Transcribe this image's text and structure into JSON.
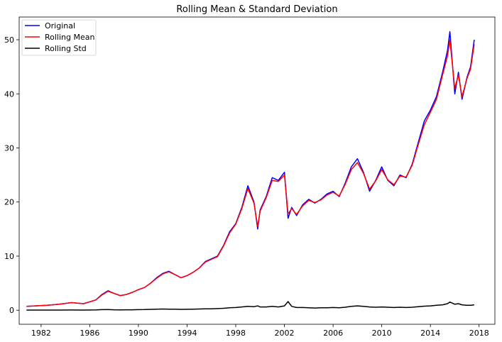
{
  "chart_data": {
    "type": "line",
    "title": "Rolling Mean & Standard Deviation",
    "xlabel": "",
    "ylabel": "",
    "xlim": [
      1980.2,
      2019.3
    ],
    "ylim": [
      -2.6,
      54.2
    ],
    "x_ticks": [
      1982,
      1986,
      1990,
      1994,
      1998,
      2002,
      2006,
      2010,
      2014,
      2018
    ],
    "x_tick_labels": [
      "1982",
      "1986",
      "1990",
      "1994",
      "1998",
      "2002",
      "2006",
      "2010",
      "2014",
      "2018"
    ],
    "y_ticks": [
      0,
      10,
      20,
      30,
      40,
      50
    ],
    "y_tick_labels": [
      "0",
      "10",
      "20",
      "30",
      "40",
      "50"
    ],
    "grid": false,
    "legend_position": "top-left",
    "x": [
      1980.8,
      1981.5,
      1982.5,
      1983.5,
      1984.5,
      1985.5,
      1986.5,
      1987.0,
      1987.5,
      1988.0,
      1988.5,
      1989.0,
      1989.5,
      1990.0,
      1990.5,
      1991.0,
      1991.5,
      1992.0,
      1992.5,
      1993.0,
      1993.5,
      1994.0,
      1994.5,
      1995.0,
      1995.5,
      1996.0,
      1996.5,
      1997.0,
      1997.5,
      1998.0,
      1998.5,
      1999.0,
      1999.5,
      1999.8,
      2000.0,
      2000.5,
      2001.0,
      2001.5,
      2002.0,
      2002.3,
      2002.6,
      2003.0,
      2003.5,
      2004.0,
      2004.5,
      2005.0,
      2005.5,
      2006.0,
      2006.5,
      2007.0,
      2007.5,
      2008.0,
      2008.5,
      2009.0,
      2009.5,
      2010.0,
      2010.5,
      2011.0,
      2011.5,
      2012.0,
      2012.5,
      2013.0,
      2013.5,
      2014.0,
      2014.5,
      2015.0,
      2015.4,
      2015.6,
      2016.0,
      2016.3,
      2016.6,
      2017.0,
      2017.3,
      2017.6
    ],
    "series": [
      {
        "name": "Original",
        "color": "#0000ff",
        "values": [
          0.7,
          0.8,
          0.9,
          1.1,
          1.4,
          1.2,
          1.9,
          2.9,
          3.6,
          3.1,
          2.7,
          2.9,
          3.3,
          3.8,
          4.2,
          5.0,
          6.0,
          6.8,
          7.2,
          6.6,
          6.0,
          6.4,
          7.0,
          7.8,
          9.0,
          9.5,
          10.0,
          12.0,
          14.5,
          16.0,
          19.0,
          23.0,
          20.0,
          15.0,
          18.5,
          21.0,
          24.5,
          24.0,
          25.5,
          17.0,
          19.0,
          17.5,
          19.5,
          20.5,
          19.8,
          20.5,
          21.5,
          22.0,
          21.0,
          23.5,
          26.5,
          28.0,
          25.5,
          22.0,
          24.0,
          26.5,
          24.0,
          23.0,
          25.0,
          24.5,
          27.0,
          31.0,
          35.0,
          37.0,
          39.5,
          44.0,
          48.0,
          51.5,
          40.0,
          44.0,
          39.0,
          43.0,
          45.0,
          50.0
        ]
      },
      {
        "name": "Rolling Mean",
        "color": "#ff0000",
        "values": [
          0.7,
          0.8,
          0.9,
          1.1,
          1.4,
          1.2,
          1.9,
          2.8,
          3.5,
          3.1,
          2.7,
          2.9,
          3.3,
          3.8,
          4.2,
          5.0,
          5.9,
          6.7,
          7.1,
          6.6,
          6.0,
          6.4,
          7.0,
          7.8,
          8.9,
          9.4,
          9.9,
          11.9,
          14.3,
          15.9,
          18.8,
          22.5,
          19.8,
          15.5,
          18.3,
          20.8,
          24.0,
          23.8,
          25.0,
          17.8,
          18.8,
          17.7,
          19.3,
          20.3,
          19.9,
          20.4,
          21.3,
          21.8,
          21.1,
          23.3,
          26.0,
          27.3,
          25.3,
          22.4,
          23.9,
          26.0,
          24.1,
          23.2,
          24.8,
          24.6,
          26.8,
          30.6,
          34.3,
          36.6,
          39.0,
          43.5,
          47.0,
          50.0,
          41.0,
          43.5,
          39.5,
          42.8,
          44.6,
          49.2
        ]
      },
      {
        "name": "Rolling Std",
        "color": "#000000",
        "values": [
          0.02,
          0.02,
          0.02,
          0.03,
          0.04,
          0.03,
          0.05,
          0.1,
          0.12,
          0.08,
          0.06,
          0.07,
          0.08,
          0.1,
          0.12,
          0.15,
          0.18,
          0.22,
          0.2,
          0.18,
          0.16,
          0.17,
          0.2,
          0.22,
          0.25,
          0.25,
          0.3,
          0.35,
          0.45,
          0.5,
          0.6,
          0.7,
          0.65,
          0.8,
          0.6,
          0.6,
          0.7,
          0.6,
          0.8,
          1.6,
          0.7,
          0.5,
          0.5,
          0.45,
          0.4,
          0.45,
          0.45,
          0.5,
          0.45,
          0.55,
          0.7,
          0.8,
          0.7,
          0.6,
          0.55,
          0.6,
          0.55,
          0.5,
          0.55,
          0.5,
          0.55,
          0.65,
          0.75,
          0.8,
          0.9,
          1.0,
          1.2,
          1.5,
          1.1,
          1.2,
          1.0,
          0.9,
          0.9,
          1.0
        ]
      }
    ]
  }
}
